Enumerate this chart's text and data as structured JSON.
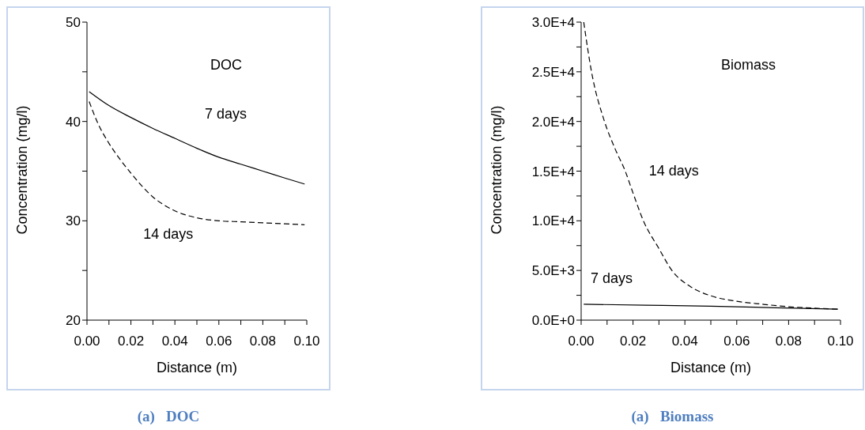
{
  "chart_data": [
    {
      "type": "line",
      "title": "(a)   DOC",
      "xlabel": "Distance (m)",
      "ylabel": "Concentration (mg/l)",
      "xlim": [
        0,
        0.1
      ],
      "ylim": [
        20,
        50
      ],
      "xticks": [
        {
          "value": 0,
          "label": "0.00"
        },
        {
          "value": 0.01,
          "label": null
        },
        {
          "value": 0.02,
          "label": "0.02"
        },
        {
          "value": 0.03,
          "label": null
        },
        {
          "value": 0.04,
          "label": "0.04"
        },
        {
          "value": 0.05,
          "label": null
        },
        {
          "value": 0.06,
          "label": "0.06"
        },
        {
          "value": 0.07,
          "label": null
        },
        {
          "value": 0.08,
          "label": "0.08"
        },
        {
          "value": 0.09,
          "label": null
        },
        {
          "value": 0.1,
          "label": "0.10"
        }
      ],
      "yticks": [
        20,
        {
          "value": 25,
          "label": null
        },
        30,
        {
          "value": 35,
          "label": null
        },
        40,
        {
          "value": 45,
          "label": null
        },
        50
      ],
      "series": [
        {
          "name": "7 days",
          "color": "#000000",
          "line_style": "solid",
          "x": [
            0.001,
            0.01,
            0.02,
            0.03,
            0.04,
            0.05,
            0.06,
            0.07,
            0.08,
            0.09,
            0.099
          ],
          "values": [
            43,
            41.6,
            40.4,
            39.3,
            38.3,
            37.3,
            36.4,
            35.7,
            35,
            34.3,
            33.7
          ]
        },
        {
          "name": "14 days",
          "color": "#000000",
          "line_style": "dashed",
          "x": [
            0.001,
            0.005,
            0.01,
            0.015,
            0.02,
            0.025,
            0.03,
            0.035,
            0.04,
            0.05,
            0.06,
            0.07,
            0.08,
            0.09,
            0.099
          ],
          "values": [
            42,
            39.8,
            37.8,
            36.2,
            34.8,
            33.5,
            32.4,
            31.6,
            31,
            30.3,
            30,
            29.9,
            29.8,
            29.7,
            29.6
          ]
        }
      ],
      "annotations": [
        "DOC"
      ],
      "grid": false,
      "marker": "none"
    },
    {
      "type": "line",
      "title": "(a)   Biomass",
      "xlabel": "Distance (m)",
      "ylabel": "Concentration (mg/l)",
      "xlim": [
        0,
        0.1
      ],
      "ylim": [
        0,
        30000
      ],
      "xticks": [
        {
          "value": 0,
          "label": "0.00"
        },
        {
          "value": 0.01,
          "label": null
        },
        {
          "value": 0.02,
          "label": "0.02"
        },
        {
          "value": 0.03,
          "label": null
        },
        {
          "value": 0.04,
          "label": "0.04"
        },
        {
          "value": 0.05,
          "label": null
        },
        {
          "value": 0.06,
          "label": "0.06"
        },
        {
          "value": 0.07,
          "label": null
        },
        {
          "value": 0.08,
          "label": "0.08"
        },
        {
          "value": 0.09,
          "label": null
        },
        {
          "value": 0.1,
          "label": "0.10"
        }
      ],
      "yticks": [
        {
          "value": 0,
          "label": "0.0E+0"
        },
        {
          "value": 2500,
          "label": null
        },
        {
          "value": 5000,
          "label": "5.0E+3"
        },
        {
          "value": 7500,
          "label": null
        },
        {
          "value": 10000,
          "label": "1.0E+4"
        },
        {
          "value": 12500,
          "label": null
        },
        {
          "value": 15000,
          "label": "1.5E+4"
        },
        {
          "value": 17500,
          "label": null
        },
        {
          "value": 20000,
          "label": "2.0E+4"
        },
        {
          "value": 22500,
          "label": null
        },
        {
          "value": 25000,
          "label": "2.5E+4"
        },
        {
          "value": 27500,
          "label": null
        },
        {
          "value": 30000,
          "label": "3.0E+4"
        }
      ],
      "series": [
        {
          "name": "7 days",
          "color": "#000000",
          "line_style": "solid",
          "x": [
            0.001,
            0.025,
            0.05,
            0.075,
            0.099
          ],
          "values": [
            1600,
            1500,
            1400,
            1250,
            1100
          ]
        },
        {
          "name": "14 days",
          "color": "#000000",
          "line_style": "dashed",
          "x": [
            0.001,
            0.004,
            0.009,
            0.013,
            0.017,
            0.02,
            0.024,
            0.03,
            0.035,
            0.042,
            0.05,
            0.06,
            0.07,
            0.08,
            0.09,
            0.099
          ],
          "values": [
            30000,
            25000,
            20000,
            17300,
            15000,
            12800,
            10000,
            7200,
            5000,
            3400,
            2450,
            1900,
            1600,
            1350,
            1200,
            1100
          ]
        }
      ],
      "annotations": [
        "Biomass"
      ],
      "grid": false,
      "marker": "none"
    }
  ]
}
